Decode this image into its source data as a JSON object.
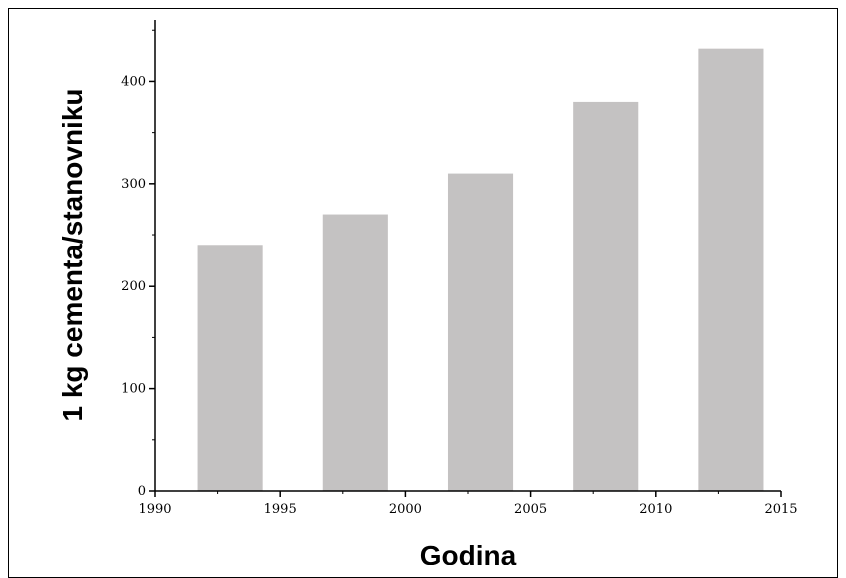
{
  "chart_data": {
    "type": "bar",
    "title": "",
    "xlabel": "Godina",
    "ylabel": "1 kg cementa/stanovniku",
    "xlim": [
      1990,
      2015
    ],
    "ylim": [
      0,
      460
    ],
    "xticks": [
      1990,
      1995,
      2000,
      2005,
      2010,
      2015
    ],
    "yticks": [
      0,
      100,
      200,
      300,
      400
    ],
    "bar_width_years": 2.6,
    "x": [
      1993,
      1998,
      2003,
      2008,
      2013
    ],
    "values": [
      240,
      270,
      310,
      380,
      432
    ],
    "bar_color": "#c4c2c2",
    "grid": false,
    "legend": "none"
  }
}
